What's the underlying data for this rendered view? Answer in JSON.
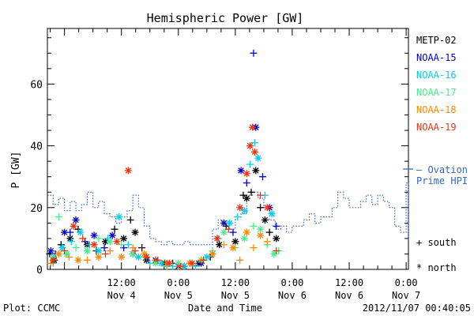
{
  "chart_data": {
    "type": "scatter",
    "title": "Hemispheric Power [GW]",
    "ylabel": "P [GW]",
    "xlabel": "Date and Time",
    "footer_left": "Plot: CCMC",
    "footer_right": "2012/11/07 00:40:05",
    "ylim": [
      0,
      78
    ],
    "xlim": [
      -0.15,
      3.02
    ],
    "x_unit": "days since 2012-11-04 00:00",
    "y_ticks": [
      0,
      20,
      40,
      60
    ],
    "x_ticks": [
      {
        "x": 0.5,
        "time": "12:00",
        "date": "Nov 4"
      },
      {
        "x": 1.0,
        "time": "0:00",
        "date": "Nov 5"
      },
      {
        "x": 1.5,
        "time": "12:00",
        "date": "Nov 5"
      },
      {
        "x": 2.0,
        "time": "0:00",
        "date": "Nov 6"
      },
      {
        "x": 2.5,
        "time": "12:00",
        "date": "Nov 6"
      },
      {
        "x": 3.0,
        "time": "0:00",
        "date": "Nov 7"
      }
    ],
    "grid": false,
    "legend_position": "right",
    "marker_legend": {
      "south": "+ south",
      "north": "* north"
    },
    "series": [
      {
        "name": "METP-02",
        "color": "#000000",
        "points": [
          [
            -0.13,
            5,
            "s"
          ],
          [
            -0.09,
            3,
            "n"
          ],
          [
            -0.03,
            8,
            "s"
          ],
          [
            0.05,
            10,
            "n"
          ],
          [
            0.12,
            13,
            "s"
          ],
          [
            0.2,
            8,
            "n"
          ],
          [
            0.28,
            6,
            "s"
          ],
          [
            0.36,
            9,
            "n"
          ],
          [
            0.44,
            13,
            "s"
          ],
          [
            0.52,
            10,
            "n"
          ],
          [
            0.58,
            16,
            "s"
          ],
          [
            0.62,
            12,
            "n"
          ],
          [
            0.68,
            7,
            "s"
          ],
          [
            0.72,
            3,
            "n"
          ],
          [
            0.8,
            3,
            "s"
          ],
          [
            0.88,
            2,
            "n"
          ],
          [
            0.95,
            2,
            "s"
          ],
          [
            1.05,
            1,
            "n"
          ],
          [
            1.1,
            2,
            "s"
          ],
          [
            1.18,
            2,
            "n"
          ],
          [
            1.28,
            4,
            "s"
          ],
          [
            1.36,
            8,
            "n"
          ],
          [
            1.42,
            14,
            "s"
          ],
          [
            1.5,
            9,
            "n"
          ],
          [
            1.57,
            24,
            "s"
          ],
          [
            1.6,
            23,
            "n"
          ],
          [
            1.64,
            25,
            "s"
          ],
          [
            1.68,
            32,
            "n"
          ],
          [
            1.72,
            20,
            "s"
          ],
          [
            1.76,
            16,
            "n"
          ],
          [
            1.8,
            12,
            "s"
          ],
          [
            1.86,
            10,
            "n"
          ]
        ]
      },
      {
        "name": "NOAA-15",
        "color": "#0000cc",
        "points": [
          [
            -0.12,
            6,
            "n"
          ],
          [
            -0.08,
            5,
            "s"
          ],
          [
            0.0,
            12,
            "n"
          ],
          [
            0.05,
            12,
            "s"
          ],
          [
            0.1,
            16,
            "n"
          ],
          [
            0.18,
            9,
            "s"
          ],
          [
            0.26,
            11,
            "n"
          ],
          [
            0.35,
            7,
            "s"
          ],
          [
            0.42,
            11,
            "n"
          ],
          [
            0.52,
            7,
            "s"
          ],
          [
            0.6,
            5,
            "n"
          ],
          [
            0.72,
            3,
            "s"
          ],
          [
            0.8,
            3,
            "n"
          ],
          [
            0.9,
            1,
            "s"
          ],
          [
            1.0,
            1,
            "n"
          ],
          [
            1.1,
            2,
            "s"
          ],
          [
            1.2,
            2,
            "n"
          ],
          [
            1.3,
            5,
            "s"
          ],
          [
            1.4,
            15,
            "n"
          ],
          [
            1.48,
            12,
            "s"
          ],
          [
            1.55,
            32,
            "n"
          ],
          [
            1.6,
            28,
            "s"
          ],
          [
            1.66,
            70,
            "s"
          ],
          [
            1.68,
            46,
            "n"
          ],
          [
            1.74,
            30,
            "s"
          ],
          [
            1.8,
            20,
            "n"
          ],
          [
            1.86,
            14,
            "s"
          ]
        ]
      },
      {
        "name": "NOAA-16",
        "color": "#00ccee",
        "points": [
          [
            -0.1,
            2,
            "s"
          ],
          [
            -0.02,
            7,
            "n"
          ],
          [
            0.06,
            9,
            "s"
          ],
          [
            0.14,
            12,
            "n"
          ],
          [
            0.22,
            8,
            "s"
          ],
          [
            0.3,
            6,
            "n"
          ],
          [
            0.38,
            10,
            "s"
          ],
          [
            0.48,
            17,
            "n"
          ],
          [
            0.56,
            8,
            "s"
          ],
          [
            0.65,
            4,
            "n"
          ],
          [
            0.75,
            2,
            "s"
          ],
          [
            0.85,
            2,
            "n"
          ],
          [
            0.95,
            1,
            "s"
          ],
          [
            1.05,
            1,
            "n"
          ],
          [
            1.15,
            1,
            "s"
          ],
          [
            1.25,
            4,
            "n"
          ],
          [
            1.35,
            10,
            "s"
          ],
          [
            1.45,
            15,
            "n"
          ],
          [
            1.52,
            17,
            "s"
          ],
          [
            1.58,
            19,
            "n"
          ],
          [
            1.63,
            34,
            "s"
          ],
          [
            1.67,
            41,
            "s"
          ],
          [
            1.7,
            36,
            "n"
          ],
          [
            1.76,
            24,
            "s"
          ],
          [
            1.82,
            18,
            "n"
          ]
        ]
      },
      {
        "name": "NOAA-17",
        "color": "#44ee88",
        "points": [
          [
            -0.1,
            4,
            "n"
          ],
          [
            -0.05,
            17,
            "s"
          ],
          [
            0.02,
            5,
            "n"
          ],
          [
            0.1,
            7,
            "s"
          ],
          [
            0.2,
            6,
            "n"
          ],
          [
            0.3,
            10,
            "s"
          ],
          [
            0.4,
            9,
            "n"
          ],
          [
            0.5,
            8,
            "s"
          ],
          [
            0.6,
            5,
            "n"
          ],
          [
            0.7,
            4,
            "s"
          ],
          [
            0.8,
            2,
            "n"
          ],
          [
            0.9,
            1,
            "s"
          ],
          [
            1.0,
            2,
            "n"
          ],
          [
            1.1,
            2,
            "s"
          ],
          [
            1.2,
            3,
            "n"
          ],
          [
            1.3,
            6,
            "s"
          ],
          [
            1.4,
            12,
            "n"
          ],
          [
            1.5,
            7,
            "s"
          ],
          [
            1.58,
            10,
            "n"
          ],
          [
            1.66,
            14,
            "s"
          ],
          [
            1.72,
            13,
            "n"
          ],
          [
            1.78,
            8,
            "s"
          ],
          [
            1.84,
            5,
            "n"
          ],
          [
            1.88,
            6,
            "s"
          ]
        ]
      },
      {
        "name": "NOAA-18",
        "color": "#ff8800",
        "points": [
          [
            -0.12,
            2,
            "s"
          ],
          [
            -0.05,
            5,
            "n"
          ],
          [
            0.04,
            4,
            "s"
          ],
          [
            0.12,
            3,
            "n"
          ],
          [
            0.2,
            3,
            "s"
          ],
          [
            0.3,
            4,
            "n"
          ],
          [
            0.4,
            6,
            "s"
          ],
          [
            0.5,
            4,
            "n"
          ],
          [
            0.6,
            7,
            "s"
          ],
          [
            0.7,
            5,
            "n"
          ],
          [
            0.8,
            3,
            "s"
          ],
          [
            0.9,
            2,
            "n"
          ],
          [
            1.0,
            1,
            "s"
          ],
          [
            1.1,
            2,
            "n"
          ],
          [
            1.2,
            3,
            "s"
          ],
          [
            1.3,
            5,
            "n"
          ],
          [
            1.4,
            8,
            "s"
          ],
          [
            1.48,
            7,
            "n"
          ],
          [
            1.54,
            3,
            "s"
          ],
          [
            1.6,
            12,
            "n"
          ],
          [
            1.66,
            7,
            "s"
          ],
          [
            1.72,
            11,
            "n"
          ],
          [
            1.78,
            9,
            "s"
          ]
        ]
      },
      {
        "name": "NOAA-19",
        "color": "#ee3311",
        "points": [
          [
            -0.1,
            3,
            "n"
          ],
          [
            0.0,
            6,
            "s"
          ],
          [
            0.08,
            14,
            "n"
          ],
          [
            0.16,
            10,
            "s"
          ],
          [
            0.26,
            8,
            "n"
          ],
          [
            0.36,
            5,
            "s"
          ],
          [
            0.46,
            9,
            "n"
          ],
          [
            0.56,
            32,
            "n"
          ],
          [
            0.62,
            6,
            "s"
          ],
          [
            0.72,
            4,
            "n"
          ],
          [
            0.82,
            3,
            "s"
          ],
          [
            0.92,
            2,
            "n"
          ],
          [
            1.02,
            1,
            "s"
          ],
          [
            1.12,
            2,
            "n"
          ],
          [
            1.22,
            3,
            "s"
          ],
          [
            1.34,
            10,
            "n"
          ],
          [
            1.44,
            13,
            "s"
          ],
          [
            1.54,
            20,
            "n"
          ],
          [
            1.6,
            31,
            "n"
          ],
          [
            1.63,
            40,
            "n"
          ],
          [
            1.65,
            46,
            "n"
          ],
          [
            1.67,
            38,
            "n"
          ],
          [
            1.72,
            24,
            "s"
          ],
          [
            1.78,
            20,
            "n"
          ],
          [
            1.86,
            6,
            "s"
          ]
        ]
      }
    ],
    "ovation": {
      "name": "Ovation Prime HPI",
      "label_line1": "– Ovation",
      "label_line2": "Prime HPI",
      "color": "#3366cc",
      "steps": [
        [
          -0.15,
          24
        ],
        [
          -0.1,
          21
        ],
        [
          -0.05,
          23
        ],
        [
          0.0,
          19
        ],
        [
          0.05,
          22
        ],
        [
          0.1,
          19
        ],
        [
          0.15,
          21
        ],
        [
          0.2,
          25
        ],
        [
          0.25,
          20
        ],
        [
          0.3,
          22
        ],
        [
          0.35,
          18
        ],
        [
          0.4,
          17
        ],
        [
          0.45,
          15
        ],
        [
          0.5,
          17
        ],
        [
          0.55,
          19
        ],
        [
          0.6,
          24
        ],
        [
          0.65,
          20
        ],
        [
          0.7,
          14
        ],
        [
          0.75,
          10
        ],
        [
          0.8,
          9
        ],
        [
          0.85,
          8
        ],
        [
          0.9,
          9
        ],
        [
          0.95,
          8
        ],
        [
          1.0,
          8
        ],
        [
          1.05,
          9
        ],
        [
          1.1,
          8
        ],
        [
          1.15,
          8
        ],
        [
          1.2,
          8
        ],
        [
          1.25,
          8
        ],
        [
          1.3,
          13
        ],
        [
          1.35,
          16
        ],
        [
          1.4,
          14
        ],
        [
          1.45,
          13
        ],
        [
          1.5,
          17
        ],
        [
          1.55,
          18
        ],
        [
          1.6,
          24
        ],
        [
          1.65,
          25
        ],
        [
          1.7,
          23
        ],
        [
          1.75,
          20
        ],
        [
          1.8,
          16
        ],
        [
          1.85,
          13
        ],
        [
          1.9,
          14
        ],
        [
          1.95,
          12
        ],
        [
          2.0,
          14
        ],
        [
          2.05,
          14
        ],
        [
          2.1,
          16
        ],
        [
          2.15,
          18
        ],
        [
          2.2,
          15
        ],
        [
          2.25,
          17
        ],
        [
          2.3,
          17
        ],
        [
          2.35,
          20
        ],
        [
          2.4,
          25
        ],
        [
          2.45,
          23
        ],
        [
          2.5,
          20
        ],
        [
          2.55,
          20
        ],
        [
          2.6,
          22
        ],
        [
          2.65,
          24
        ],
        [
          2.7,
          21
        ],
        [
          2.75,
          24
        ],
        [
          2.8,
          22
        ],
        [
          2.85,
          20
        ],
        [
          2.9,
          14
        ],
        [
          2.95,
          12
        ],
        [
          3.0,
          28
        ],
        [
          3.02,
          9
        ]
      ]
    }
  }
}
